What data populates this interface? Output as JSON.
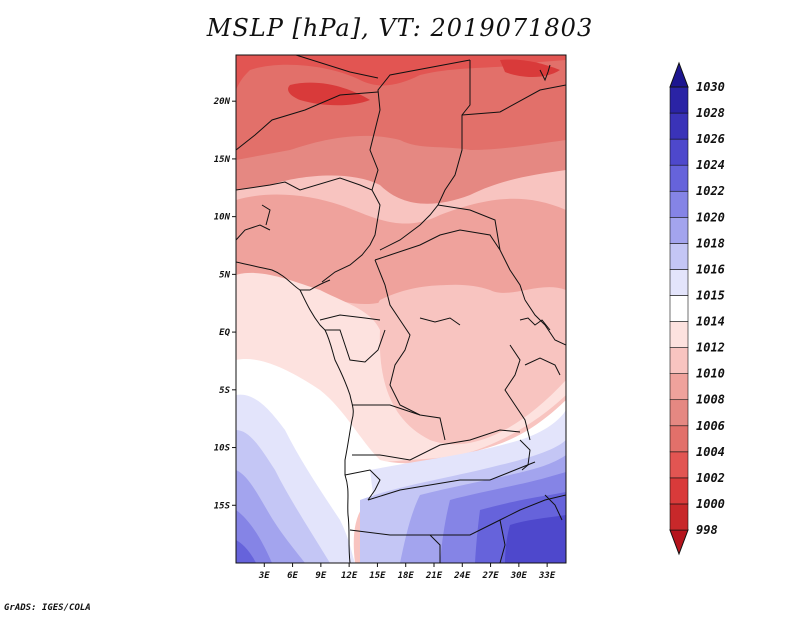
{
  "title": "MSLP [hPa], VT: 2019071803",
  "credit": "GrADS: IGES/COLA",
  "map": {
    "lon_range": [
      0,
      35
    ],
    "lat_range": [
      -20,
      24
    ],
    "x_ticks": [
      "3E",
      "6E",
      "9E",
      "12E",
      "15E",
      "18E",
      "21E",
      "24E",
      "27E",
      "30E",
      "33E"
    ],
    "x_tick_values": [
      3,
      6,
      9,
      12,
      15,
      18,
      21,
      24,
      27,
      30,
      33
    ],
    "y_ticks": [
      "20N",
      "15N",
      "10N",
      "5N",
      "EQ",
      "5S",
      "10S",
      "15S"
    ],
    "y_tick_values": [
      20,
      15,
      10,
      5,
      0,
      -5,
      -10,
      -15
    ]
  },
  "colorbar": {
    "levels": [
      "998",
      "1000",
      "1002",
      "1004",
      "1006",
      "1008",
      "1010",
      "1012",
      "1014",
      "1015",
      "1016",
      "1018",
      "1020",
      "1022",
      "1024",
      "1026",
      "1028",
      "1030"
    ],
    "colors": [
      "#b5141d",
      "#c8282a",
      "#d93a3a",
      "#e25552",
      "#e2706a",
      "#e58882",
      "#efa29c",
      "#f8c4c0",
      "#fde2df",
      "#ffffff",
      "#e3e4fb",
      "#c4c6f5",
      "#a3a4ee",
      "#8584e6",
      "#6663db",
      "#4e48cc",
      "#3a33b8",
      "#2a23a5",
      "#1d1690"
    ]
  }
}
